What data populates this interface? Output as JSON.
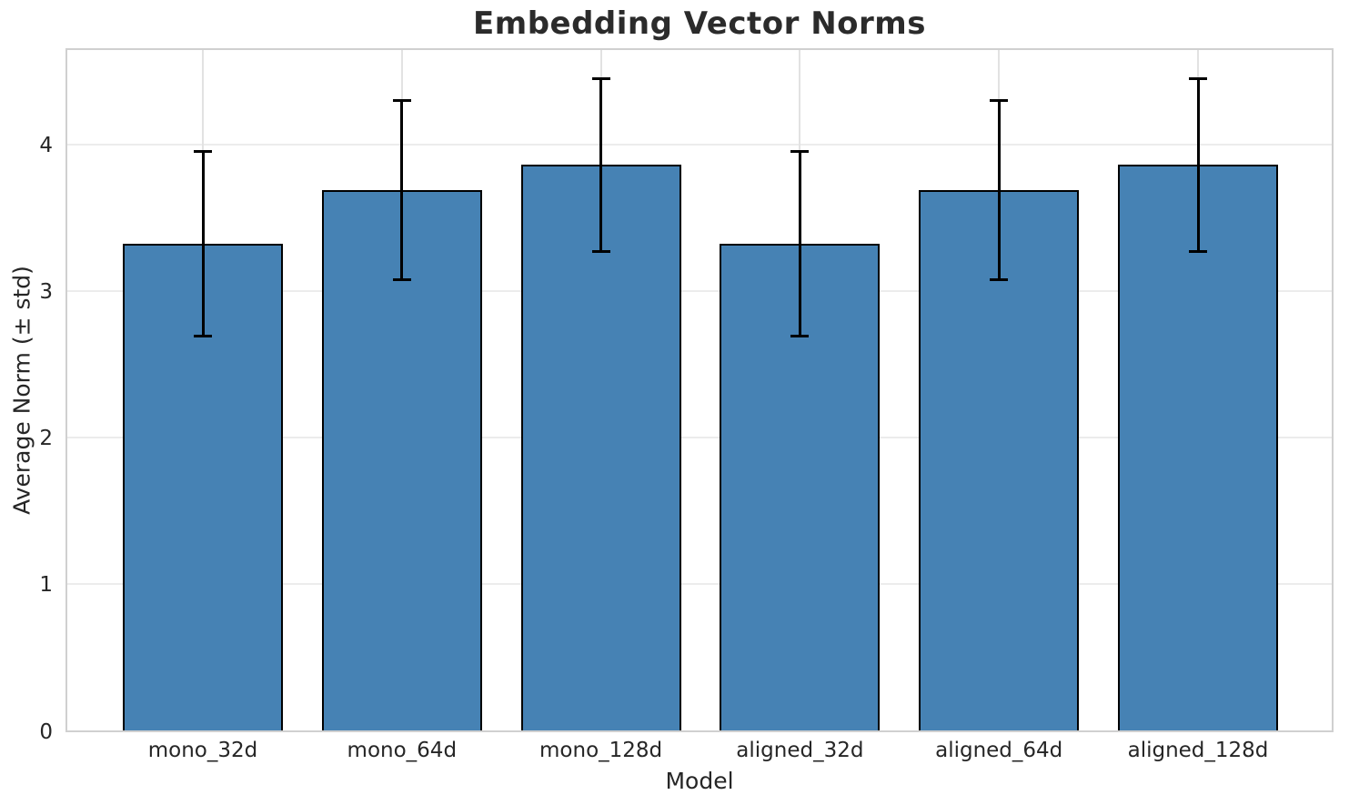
{
  "chart_data": {
    "type": "bar",
    "title": "Embedding Vector Norms",
    "xlabel": "Model",
    "ylabel": "Average Norm (± std)",
    "categories": [
      "mono_32d",
      "mono_64d",
      "mono_128d",
      "aligned_32d",
      "aligned_64d",
      "aligned_128d"
    ],
    "values": [
      3.32,
      3.69,
      3.86,
      3.32,
      3.69,
      3.86
    ],
    "std": [
      0.63,
      0.61,
      0.59,
      0.63,
      0.61,
      0.59
    ],
    "yticks": [
      0,
      1,
      2,
      3,
      4
    ],
    "ylim": [
      0,
      4.67
    ],
    "grid": true,
    "legend_position": "none",
    "error_bars": "symmetric-std-with-caps",
    "colors": {
      "bar_fill": "#4682B4",
      "bar_edge": "#000000",
      "error_bar": "#000000",
      "grid_horizontal": "#ececec",
      "grid_vertical": "#e2e2e2",
      "spine": "#d0d0d0",
      "text": "#262626",
      "title_text": "#2b2b2b",
      "background": "#ffffff"
    }
  }
}
